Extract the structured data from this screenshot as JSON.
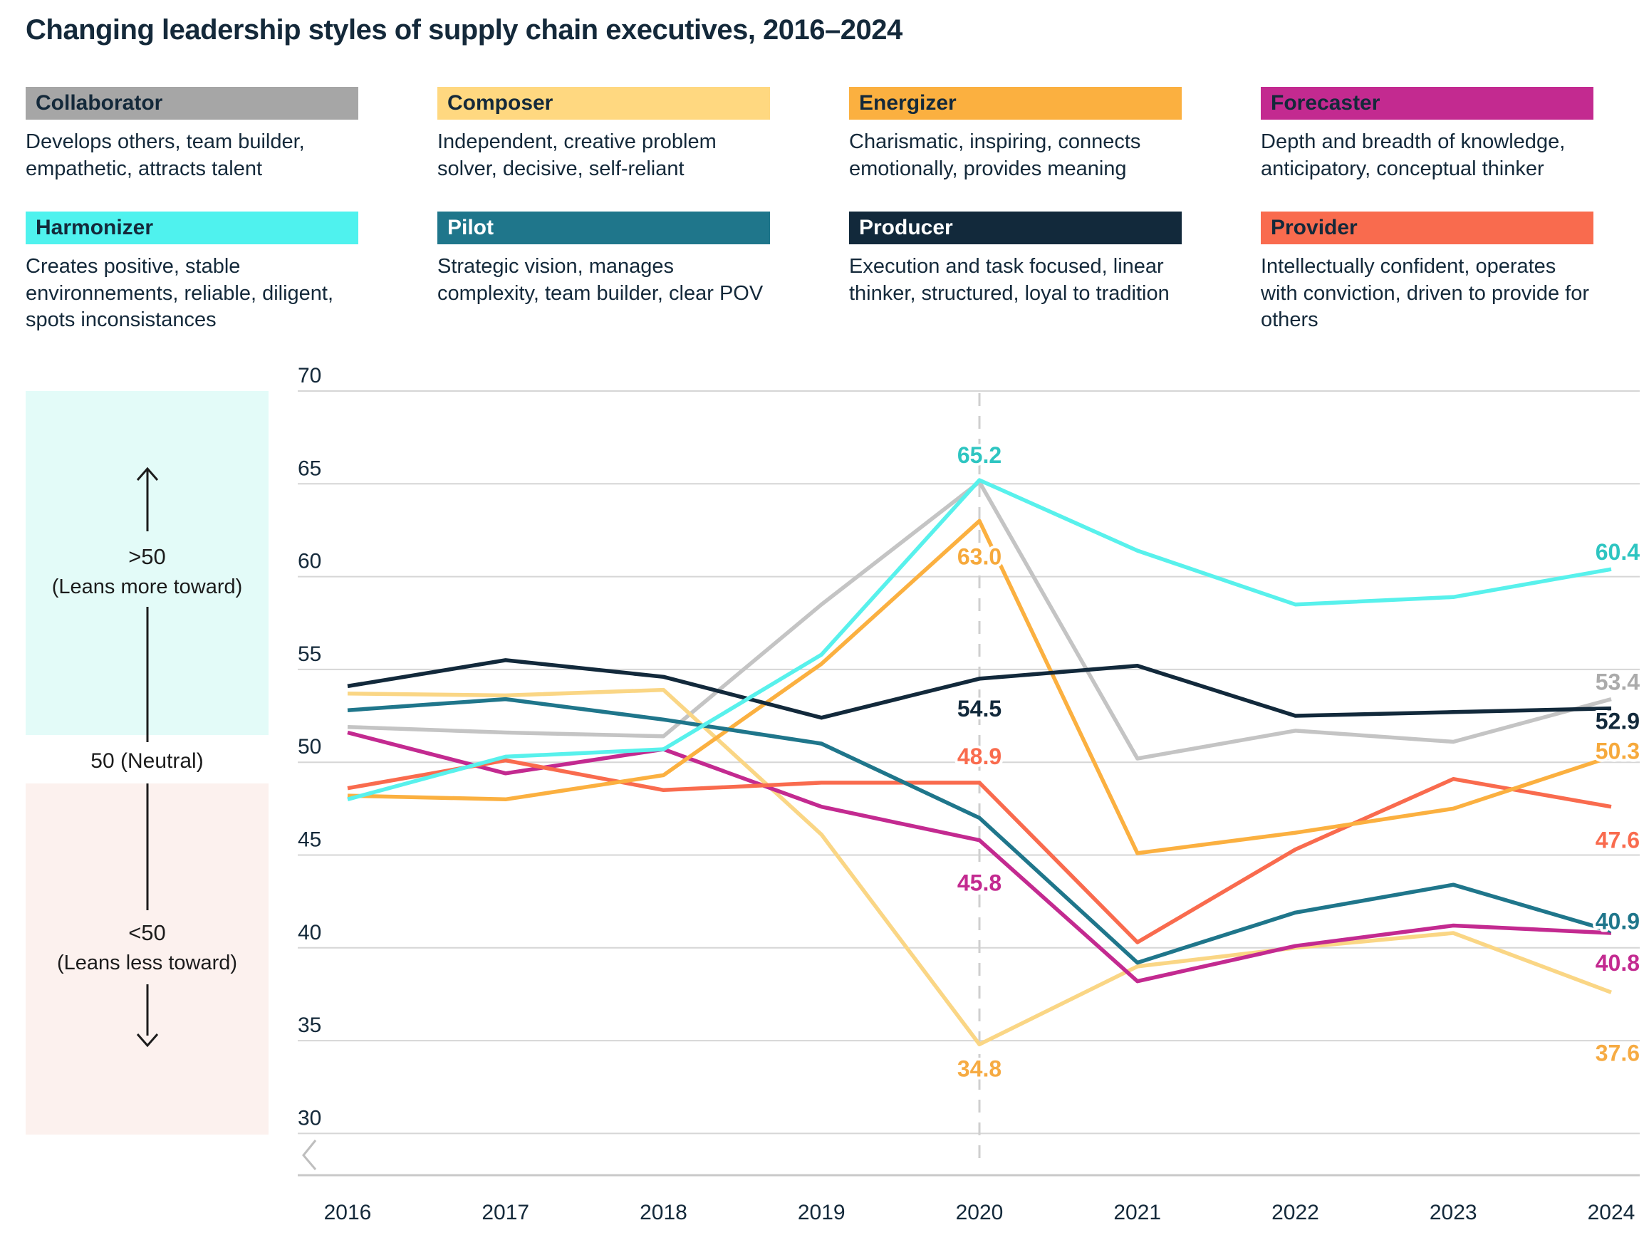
{
  "title": "Changing leadership styles of supply chain executives, 2016–2024",
  "legend": {
    "items": [
      {
        "name": "Collaborator",
        "desc": "Develops others, team builder, empathetic, attracts talent",
        "color": "#A6A6A6",
        "text_color": "#14293A"
      },
      {
        "name": "Composer",
        "desc": "Independent, creative problem solver, decisive, self-reliant",
        "color": "#FFD880",
        "text_color": "#14293A"
      },
      {
        "name": "Energizer",
        "desc": "Charismatic, inspiring, connects emotionally, provides meaning",
        "color": "#FBB040",
        "text_color": "#14293A"
      },
      {
        "name": "Forecaster",
        "desc": "Depth and breadth of knowledge, anticipatory, conceptual thinker",
        "color": "#C32A90",
        "text_color": "#14293A"
      },
      {
        "name": "Harmonizer",
        "desc": "Creates positive, stable environnements, reliable, diligent, spots inconsistances",
        "color": "#4FF2EE",
        "text_color": "#14293A"
      },
      {
        "name": "Pilot",
        "desc": "Strategic vision, manages complexity, team builder, clear POV",
        "color": "#1F768B",
        "text_color": "#FFFFFF"
      },
      {
        "name": "Producer",
        "desc": "Execution and task focused, linear thinker, structured, loyal to tradition",
        "color": "#12293B",
        "text_color": "#FFFFFF"
      },
      {
        "name": "Provider",
        "desc": "Intellectually confident, operates with conviction, driven to provide for others",
        "color": "#F96B4E",
        "text_color": "#14293A"
      }
    ]
  },
  "annotations": {
    "above_label": ">50",
    "above_sub": "(Leans more toward)",
    "neutral": "50 (Neutral)",
    "below_label": "<50",
    "below_sub": "(Leans less toward)"
  },
  "chart_data": {
    "type": "line",
    "x": [
      2016,
      2017,
      2018,
      2019,
      2020,
      2021,
      2022,
      2023,
      2024
    ],
    "ylim": [
      30,
      70
    ],
    "yticks": [
      70,
      65,
      60,
      55,
      50,
      45,
      40,
      35,
      30
    ],
    "grid": true,
    "callout_year": 2020,
    "series": [
      {
        "name": "Collaborator",
        "color": "#C4C4C4",
        "label_color": "#ABABAB",
        "values": [
          51.9,
          51.6,
          51.4,
          58.5,
          65.1,
          50.2,
          51.7,
          51.1,
          53.4
        ],
        "callout_2020": null,
        "end_label": {
          "text": "53.4",
          "dy": -24
        }
      },
      {
        "name": "Composer",
        "color": "#FAD685",
        "label_color": "#F6AB43",
        "values": [
          53.7,
          53.6,
          53.9,
          46.1,
          34.8,
          39.0,
          40.0,
          40.8,
          37.6
        ],
        "callout_2020": {
          "text": "34.8",
          "dy": 34
        },
        "end_label": {
          "text": "37.6",
          "dy": 85
        }
      },
      {
        "name": "Forecaster",
        "color": "#C32A90",
        "label_color": "#C32A90",
        "values": [
          51.6,
          49.4,
          50.7,
          47.6,
          45.8,
          38.2,
          40.1,
          41.2,
          40.8
        ],
        "callout_2020": {
          "text": "45.8",
          "dy": 60
        },
        "end_label": {
          "text": "40.8",
          "dy": 42
        }
      },
      {
        "name": "Provider",
        "color": "#F96B4E",
        "label_color": "#F96B4E",
        "values": [
          48.6,
          50.1,
          48.5,
          48.9,
          48.9,
          40.3,
          45.3,
          49.1,
          47.6
        ],
        "callout_2020": {
          "text": "48.9",
          "dy": -37
        },
        "end_label": {
          "text": "47.6",
          "dy": 47
        }
      },
      {
        "name": "Energizer",
        "color": "#FBB040",
        "label_color": "#F6A93C",
        "values": [
          48.2,
          48.0,
          49.3,
          55.3,
          63.0,
          45.1,
          46.2,
          47.5,
          50.3
        ],
        "callout_2020": {
          "text": "63.0",
          "dy": 50
        },
        "end_label": {
          "text": "50.3",
          "dy": -8
        }
      },
      {
        "name": "Pilot",
        "color": "#1F768B",
        "label_color": "#1F768B",
        "values": [
          52.8,
          53.4,
          52.3,
          51.0,
          47.0,
          39.2,
          41.9,
          43.4,
          40.9
        ],
        "callout_2020": null,
        "end_label": {
          "text": "40.9",
          "dy": -14
        }
      },
      {
        "name": "Producer",
        "color": "#12293B",
        "label_color": "#12293B",
        "values": [
          54.1,
          55.5,
          54.6,
          52.4,
          54.5,
          55.2,
          52.5,
          52.7,
          52.9
        ],
        "callout_2020": {
          "text": "54.5",
          "dy": 42
        },
        "end_label": {
          "text": "52.9",
          "dy": 18
        }
      },
      {
        "name": "Harmonizer",
        "color": "#58F1EC",
        "label_color": "#2EC5C1",
        "values": [
          48.0,
          50.3,
          50.7,
          55.8,
          65.2,
          61.4,
          58.5,
          58.9,
          60.4
        ],
        "callout_2020": {
          "text": "65.2",
          "dy": -35
        },
        "end_label": {
          "text": "60.4",
          "dy": -24
        }
      }
    ]
  }
}
